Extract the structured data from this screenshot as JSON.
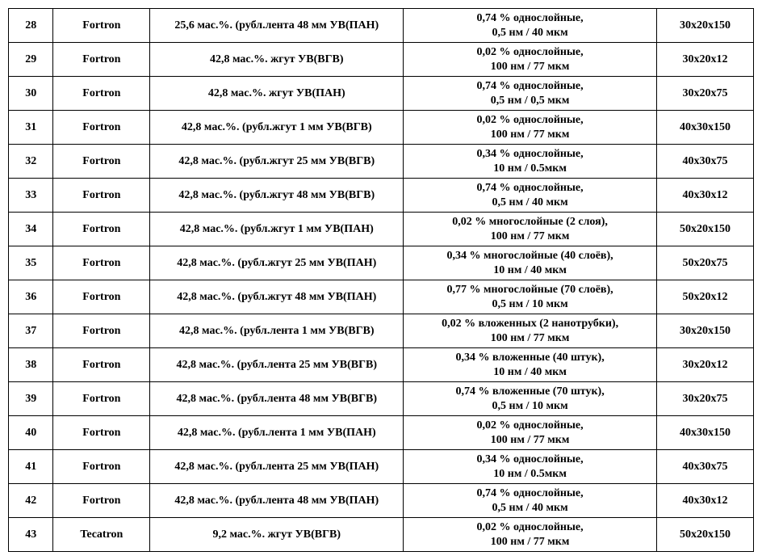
{
  "table": {
    "columns": [
      {
        "key": "num",
        "width_pct": 6,
        "align": "center"
      },
      {
        "key": "mat",
        "width_pct": 13,
        "align": "center"
      },
      {
        "key": "comp",
        "width_pct": 34,
        "align": "center"
      },
      {
        "key": "prop",
        "width_pct": 34,
        "align": "center"
      },
      {
        "key": "size",
        "width_pct": 13,
        "align": "center"
      }
    ],
    "font_family": "Times New Roman",
    "font_size_pt": 11,
    "font_weight": "bold",
    "border_color": "#000000",
    "background_color": "#ffffff",
    "rows": [
      {
        "num": "28",
        "mat": "Fortron",
        "comp": "25,6 мас.%. (рубл.лента 48 мм УВ(ПАН)",
        "prop_l1": "0,74 % однослойные,",
        "prop_l2": "0,5 нм / 40 мкм",
        "size": "30х20х150"
      },
      {
        "num": "29",
        "mat": "Fortron",
        "comp": "42,8 мас.%. жгут УВ(ВГВ)",
        "prop_l1": "0,02 % однослойные,",
        "prop_l2": "100 нм / 77 мкм",
        "size": "30х20х12"
      },
      {
        "num": "30",
        "mat": "Fortron",
        "comp": "42,8 мас.%. жгут УВ(ПАН)",
        "prop_l1": "0,74 % однослойные,",
        "prop_l2": "0,5 нм / 0,5 мкм",
        "size": "30х20х75"
      },
      {
        "num": "31",
        "mat": "Fortron",
        "comp": "42,8 мас.%. (рубл.жгут 1 мм УВ(ВГВ)",
        "prop_l1": "0,02 % однослойные,",
        "prop_l2": "100 нм / 77 мкм",
        "size": "40х30х150"
      },
      {
        "num": "32",
        "mat": "Fortron",
        "comp": "42,8 мас.%. (рубл.жгут 25 мм УВ(ВГВ)",
        "prop_l1": "0,34 % однослойные,",
        "prop_l2": "10 нм / 0.5мкм",
        "size": "40х30х75"
      },
      {
        "num": "33",
        "mat": "Fortron",
        "comp": "42,8 мас.%. (рубл.жгут 48 мм УВ(ВГВ)",
        "prop_l1": "0,74 % однослойные,",
        "prop_l2": "0,5 нм / 40 мкм",
        "size": "40х30х12"
      },
      {
        "num": "34",
        "mat": "Fortron",
        "comp": "42,8 мас.%. (рубл.жгут 1 мм УВ(ПАН)",
        "prop_l1": "0,02 % многослойные (2 слоя),",
        "prop_l2": "100 нм / 77 мкм",
        "size": "50х20х150"
      },
      {
        "num": "35",
        "mat": "Fortron",
        "comp": "42,8 мас.%. (рубл.жгут 25 мм УВ(ПАН)",
        "prop_l1": "0,34 % многослойные (40 слоёв),",
        "prop_l2": "10 нм / 40 мкм",
        "size": "50х20х75"
      },
      {
        "num": "36",
        "mat": "Fortron",
        "comp": "42,8 мас.%. (рубл.жгут 48 мм УВ(ПАН)",
        "prop_l1": "0,77 % многослойные (70 слоёв),",
        "prop_l2": "0,5 нм / 10 мкм",
        "size": "50х20х12"
      },
      {
        "num": "37",
        "mat": "Fortron",
        "comp": "42,8 мас.%. (рубл.лента 1 мм УВ(ВГВ)",
        "prop_l1": "0,02 % вложенных (2 нанотрубки),",
        "prop_l2": "100 нм / 77 мкм",
        "size": "30х20х150"
      },
      {
        "num": "38",
        "mat": "Fortron",
        "comp": "42,8 мас.%. (рубл.лента 25 мм УВ(ВГВ)",
        "prop_l1": "0,34 % вложенные (40 штук),",
        "prop_l2": "10 нм / 40 мкм",
        "size": "30х20х12"
      },
      {
        "num": "39",
        "mat": "Fortron",
        "comp": "42,8 мас.%. (рубл.лента 48 мм УВ(ВГВ)",
        "prop_l1": "0,74 % вложенные (70 штук),",
        "prop_l2": "0,5 нм / 10 мкм",
        "size": "30х20х75"
      },
      {
        "num": "40",
        "mat": "Fortron",
        "comp": "42,8 мас.%. (рубл.лента 1 мм УВ(ПАН)",
        "prop_l1": "0,02 % однослойные,",
        "prop_l2": "100 нм / 77 мкм",
        "size": "40х30х150"
      },
      {
        "num": "41",
        "mat": "Fortron",
        "comp": "42,8 мас.%. (рубл.лента 25 мм УВ(ПАН)",
        "prop_l1": "0,34 % однослойные,",
        "prop_l2": "10 нм / 0.5мкм",
        "size": "40х30х75"
      },
      {
        "num": "42",
        "mat": "Fortron",
        "comp": "42,8 мас.%. (рубл.лента 48 мм УВ(ПАН)",
        "prop_l1": "0,74 % однослойные,",
        "prop_l2": "0,5 нм / 40 мкм",
        "size": "40х30х12"
      },
      {
        "num": "43",
        "mat": "Tecatron",
        "comp": "9,2 мас.%. жгут УВ(ВГВ)",
        "prop_l1": "0,02 % однослойные,",
        "prop_l2": "100 нм / 77 мкм",
        "size": "50х20х150"
      }
    ]
  }
}
